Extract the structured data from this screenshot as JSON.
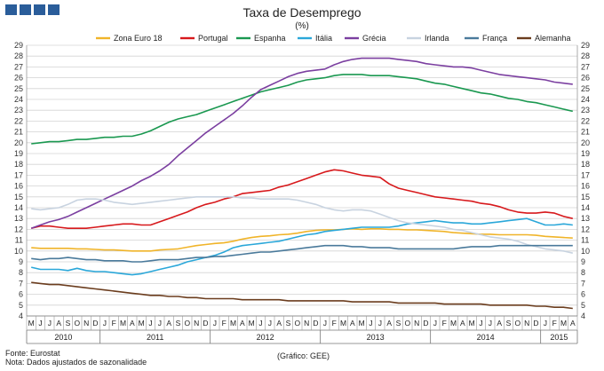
{
  "notes": {
    "source": "Fonte: Eurostat",
    "adjustment": "Nota: Dados ajustados de sazonalidade",
    "credit": "(Gráfico: GEE)"
  },
  "chart_data": {
    "type": "line",
    "title": "Taxa de Desemprego",
    "subtitle": "(%)",
    "ylim": [
      4,
      29
    ],
    "yticks": [
      4,
      5,
      6,
      7,
      8,
      9,
      10,
      11,
      12,
      13,
      14,
      15,
      16,
      17,
      18,
      19,
      20,
      21,
      22,
      23,
      24,
      25,
      26,
      27,
      28,
      29
    ],
    "grid": true,
    "legend_position": "top",
    "month_labels": [
      "M",
      "J",
      "J",
      "A",
      "S",
      "O",
      "N",
      "D",
      "J",
      "F",
      "M",
      "A",
      "M",
      "J",
      "J",
      "A",
      "S",
      "O",
      "N",
      "D",
      "J",
      "F",
      "M",
      "A",
      "M",
      "J",
      "J",
      "A",
      "S",
      "O",
      "N",
      "D",
      "J",
      "F",
      "M",
      "A",
      "M",
      "J",
      "J",
      "A",
      "S",
      "O",
      "N",
      "D",
      "J",
      "F",
      "M",
      "A",
      "M",
      "J",
      "J",
      "A",
      "S",
      "O",
      "N",
      "D",
      "J",
      "F",
      "M",
      "A"
    ],
    "years": [
      {
        "label": "2010",
        "months": 8
      },
      {
        "label": "2011",
        "months": 12
      },
      {
        "label": "2012",
        "months": 12
      },
      {
        "label": "2013",
        "months": 12
      },
      {
        "label": "2014",
        "months": 12
      },
      {
        "label": "2015",
        "months": 4
      }
    ],
    "series": [
      {
        "name": "Zona Euro 18",
        "color": "#f0b429",
        "values": [
          10.3,
          10.25,
          10.25,
          10.25,
          10.25,
          10.2,
          10.2,
          10.15,
          10.1,
          10.1,
          10.05,
          10.0,
          10.0,
          10.0,
          10.1,
          10.15,
          10.2,
          10.35,
          10.5,
          10.6,
          10.7,
          10.75,
          10.9,
          11.1,
          11.25,
          11.35,
          11.4,
          11.5,
          11.55,
          11.65,
          11.8,
          11.9,
          11.95,
          11.95,
          12.0,
          12.05,
          12.0,
          12.05,
          12.05,
          12.0,
          12.0,
          11.95,
          11.95,
          11.9,
          11.85,
          11.8,
          11.7,
          11.65,
          11.6,
          11.55,
          11.55,
          11.5,
          11.5,
          11.5,
          11.5,
          11.45,
          11.35,
          11.3,
          11.25,
          11.2
        ]
      },
      {
        "name": "Portugal",
        "color": "#d7191c",
        "values": [
          12.1,
          12.3,
          12.3,
          12.2,
          12.1,
          12.1,
          12.1,
          12.2,
          12.3,
          12.4,
          12.5,
          12.5,
          12.4,
          12.4,
          12.7,
          13.0,
          13.3,
          13.6,
          14.0,
          14.3,
          14.5,
          14.8,
          15.0,
          15.3,
          15.4,
          15.5,
          15.6,
          15.9,
          16.1,
          16.4,
          16.7,
          17.0,
          17.3,
          17.5,
          17.4,
          17.2,
          17.0,
          16.9,
          16.8,
          16.2,
          15.8,
          15.6,
          15.4,
          15.2,
          15.0,
          14.9,
          14.8,
          14.7,
          14.6,
          14.4,
          14.3,
          14.1,
          13.8,
          13.6,
          13.5,
          13.5,
          13.6,
          13.5,
          13.2,
          13.0
        ]
      },
      {
        "name": "Espanha",
        "color": "#1a9850",
        "values": [
          19.9,
          20.0,
          20.1,
          20.1,
          20.2,
          20.3,
          20.3,
          20.4,
          20.5,
          20.5,
          20.6,
          20.6,
          20.8,
          21.1,
          21.5,
          21.9,
          22.2,
          22.4,
          22.6,
          22.9,
          23.2,
          23.5,
          23.8,
          24.1,
          24.4,
          24.7,
          24.9,
          25.1,
          25.3,
          25.6,
          25.8,
          25.9,
          26.0,
          26.2,
          26.3,
          26.3,
          26.3,
          26.2,
          26.2,
          26.2,
          26.1,
          26.0,
          25.9,
          25.7,
          25.5,
          25.4,
          25.2,
          25.0,
          24.8,
          24.6,
          24.5,
          24.3,
          24.1,
          24.0,
          23.8,
          23.7,
          23.5,
          23.3,
          23.1,
          22.9
        ]
      },
      {
        "name": "Itália",
        "color": "#2aa7d9",
        "values": [
          8.5,
          8.3,
          8.3,
          8.3,
          8.2,
          8.4,
          8.2,
          8.1,
          8.1,
          8.0,
          7.9,
          7.8,
          7.9,
          8.1,
          8.3,
          8.5,
          8.7,
          9.0,
          9.2,
          9.4,
          9.6,
          9.9,
          10.3,
          10.5,
          10.6,
          10.7,
          10.8,
          10.9,
          11.1,
          11.3,
          11.5,
          11.6,
          11.8,
          11.9,
          12.0,
          12.1,
          12.2,
          12.2,
          12.2,
          12.2,
          12.3,
          12.5,
          12.6,
          12.7,
          12.8,
          12.7,
          12.6,
          12.6,
          12.5,
          12.5,
          12.6,
          12.7,
          12.8,
          12.9,
          13.0,
          12.7,
          12.4,
          12.4,
          12.5,
          12.4
        ]
      },
      {
        "name": "Grécia",
        "color": "#7b3fa0",
        "values": [
          12.1,
          12.4,
          12.7,
          12.9,
          13.2,
          13.6,
          14.0,
          14.4,
          14.8,
          15.2,
          15.6,
          16.0,
          16.5,
          16.9,
          17.4,
          18.0,
          18.8,
          19.5,
          20.2,
          20.9,
          21.5,
          22.1,
          22.7,
          23.4,
          24.2,
          24.9,
          25.3,
          25.7,
          26.1,
          26.4,
          26.6,
          26.7,
          26.8,
          27.2,
          27.5,
          27.7,
          27.8,
          27.8,
          27.8,
          27.8,
          27.7,
          27.6,
          27.5,
          27.3,
          27.2,
          27.1,
          27.0,
          27.0,
          26.9,
          26.7,
          26.5,
          26.3,
          26.2,
          26.1,
          26.0,
          25.9,
          25.8,
          25.6,
          25.5,
          25.4
        ]
      },
      {
        "name": "Irlanda",
        "color": "#c8d3e0",
        "values": [
          13.9,
          13.8,
          13.9,
          14.0,
          14.3,
          14.7,
          14.8,
          14.8,
          14.7,
          14.5,
          14.4,
          14.3,
          14.4,
          14.5,
          14.6,
          14.7,
          14.8,
          14.9,
          15.0,
          15.0,
          15.0,
          15.0,
          15.0,
          14.9,
          14.9,
          14.8,
          14.8,
          14.8,
          14.8,
          14.7,
          14.5,
          14.3,
          14.0,
          13.8,
          13.7,
          13.8,
          13.8,
          13.7,
          13.4,
          13.1,
          12.8,
          12.6,
          12.5,
          12.4,
          12.3,
          12.2,
          12.0,
          11.9,
          11.7,
          11.5,
          11.3,
          11.2,
          11.1,
          10.9,
          10.6,
          10.4,
          10.2,
          10.1,
          10.0,
          9.8
        ]
      },
      {
        "name": "França",
        "color": "#4a7a9b",
        "values": [
          9.3,
          9.2,
          9.3,
          9.3,
          9.4,
          9.3,
          9.2,
          9.2,
          9.1,
          9.1,
          9.1,
          9.0,
          9.0,
          9.1,
          9.2,
          9.2,
          9.2,
          9.3,
          9.4,
          9.4,
          9.5,
          9.5,
          9.6,
          9.7,
          9.8,
          9.9,
          9.9,
          10.0,
          10.1,
          10.2,
          10.3,
          10.4,
          10.5,
          10.5,
          10.5,
          10.4,
          10.4,
          10.3,
          10.3,
          10.3,
          10.2,
          10.2,
          10.2,
          10.2,
          10.2,
          10.2,
          10.2,
          10.3,
          10.4,
          10.4,
          10.4,
          10.5,
          10.5,
          10.5,
          10.5,
          10.5,
          10.5,
          10.5,
          10.5,
          10.5
        ]
      },
      {
        "name": "Alemanha",
        "color": "#6b3d1e",
        "values": [
          7.1,
          7.0,
          6.9,
          6.9,
          6.8,
          6.7,
          6.6,
          6.5,
          6.4,
          6.3,
          6.2,
          6.1,
          6.0,
          5.9,
          5.9,
          5.8,
          5.8,
          5.7,
          5.7,
          5.6,
          5.6,
          5.6,
          5.6,
          5.5,
          5.5,
          5.5,
          5.5,
          5.5,
          5.4,
          5.4,
          5.4,
          5.4,
          5.4,
          5.4,
          5.4,
          5.3,
          5.3,
          5.3,
          5.3,
          5.3,
          5.2,
          5.2,
          5.2,
          5.2,
          5.2,
          5.1,
          5.1,
          5.1,
          5.1,
          5.1,
          5.0,
          5.0,
          5.0,
          5.0,
          5.0,
          4.9,
          4.9,
          4.8,
          4.8,
          4.7
        ]
      }
    ]
  }
}
